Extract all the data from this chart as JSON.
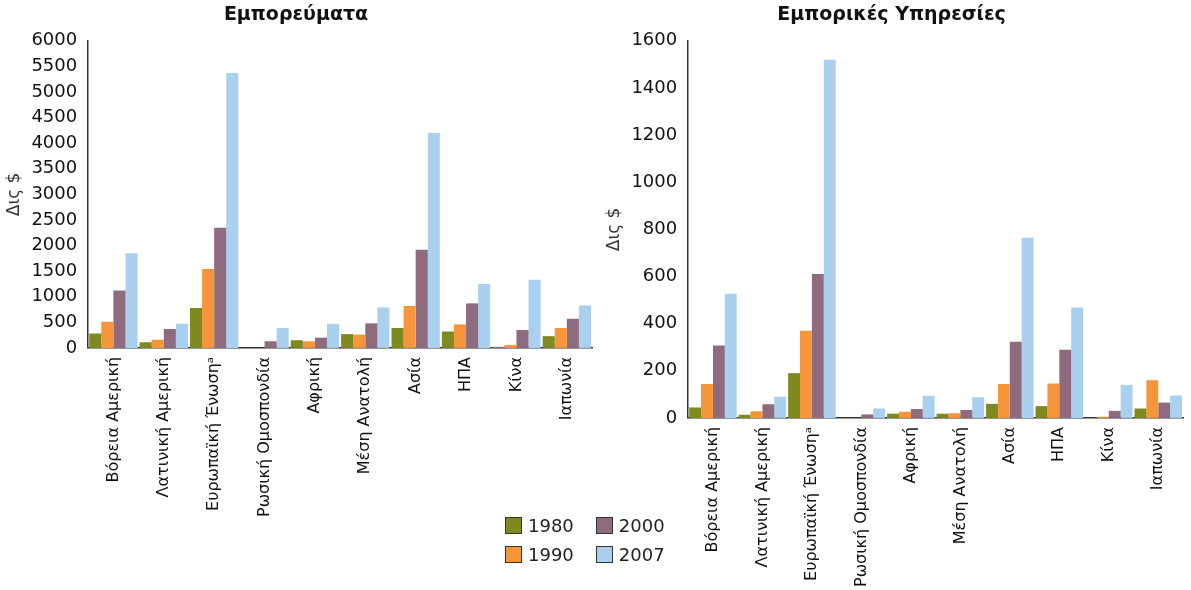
{
  "chart_data": [
    {
      "type": "bar",
      "title": "Εμπορεύματα",
      "ylabel": "Δις $",
      "categories": [
        "Βόρεια Αμερική",
        "Λατινική Αμερική",
        "Ευρωπαϊκή Ένωσηᵃ",
        "Ρωσική Ομοσπονδία",
        "Αφρική",
        "Μέση Ανατολή",
        "Ασία",
        "ΗΠΑ",
        "Κίνα",
        "Ιαπωνία"
      ],
      "ylim": [
        0,
        6000
      ],
      "yticks": [
        0,
        500,
        1000,
        1500,
        2000,
        2500,
        3000,
        3500,
        4000,
        4500,
        5000,
        5500,
        6000
      ],
      "grid": false,
      "legend": "bottom right",
      "series": [
        {
          "name": "1980",
          "color": "#7f8a1e",
          "values": [
            280,
            110,
            780,
            null,
            150,
            270,
            390,
            320,
            20,
            230
          ]
        },
        {
          "name": "1990",
          "color": "#f7953a",
          "values": [
            510,
            160,
            1540,
            null,
            130,
            260,
            820,
            460,
            60,
            390
          ]
        },
        {
          "name": "2000",
          "color": "#8e6b7e",
          "values": [
            1120,
            370,
            2350,
            130,
            200,
            480,
            1920,
            870,
            350,
            570
          ]
        },
        {
          "name": "2007",
          "color": "#a9d0ee",
          "values": [
            1850,
            470,
            5370,
            390,
            470,
            790,
            4200,
            1250,
            1330,
            830
          ]
        }
      ]
    },
    {
      "type": "bar",
      "title": "Εμπορικές Υπηρεσίες",
      "ylabel": "Δις $",
      "categories": [
        "Βόρεια Αμερική",
        "Λατινική Αμερική",
        "Ευρωπαϊκή Ένωσηᵃ",
        "Ρωσική Ομοσπονδία",
        "Αφρική",
        "Μέση Ανατολή",
        "Ασία",
        "ΗΠΑ",
        "Κίνα",
        "Ιαπωνία"
      ],
      "ylim": [
        0,
        1600
      ],
      "yticks": [
        0,
        200,
        400,
        600,
        800,
        1000,
        1200,
        1400,
        1600
      ],
      "grid": false,
      "series": [
        {
          "name": "1980",
          "color": "#7f8a1e",
          "values": [
            44,
            14,
            190,
            null,
            18,
            18,
            60,
            50,
            null,
            40
          ]
        },
        {
          "name": "1990",
          "color": "#f7953a",
          "values": [
            144,
            28,
            370,
            null,
            26,
            20,
            144,
            146,
            5,
            160
          ]
        },
        {
          "name": "2000",
          "color": "#8e6b7e",
          "values": [
            307,
            58,
            611,
            15,
            38,
            34,
            323,
            289,
            30,
            65
          ]
        },
        {
          "name": "2007",
          "color": "#a9d0ee",
          "values": [
            527,
            90,
            1520,
            40,
            94,
            88,
            764,
            469,
            140,
            95
          ]
        }
      ]
    }
  ]
}
